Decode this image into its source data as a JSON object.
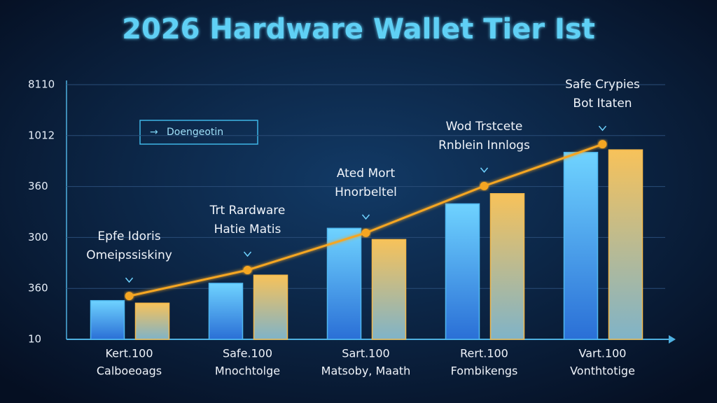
{
  "chart_data": {
    "type": "bar_line",
    "title": "2026 Hardware Wallet Tier Ist",
    "callout": "Doengeotin",
    "categories": [
      "Kert.100",
      "Safe.100",
      "Sart.100",
      "Rert.100",
      "Vart.100"
    ],
    "category_captions": [
      "Calboeoags",
      "Mnochtolge",
      "Matsoby, Maath",
      "Fombikengs",
      "Vonthtotige"
    ],
    "annotations": [
      [
        "Epfe Idoris",
        "Omeipssiskiny"
      ],
      [
        "Trt Rardware",
        "Hatie Matis"
      ],
      [
        "Ated Mort",
        "Hnorbeltel"
      ],
      [
        "Wod Trstcete",
        "Rnblein Innlogs"
      ],
      [
        "Safe Crypies",
        "Bot Itaten"
      ]
    ],
    "series": [
      {
        "color": "#4fb8f0",
        "values": [
          0.76,
          1.1,
          2.18,
          2.66,
          3.67
        ]
      },
      {
        "color": "#f2b84b",
        "values": [
          0.71,
          1.26,
          1.96,
          2.86,
          3.72
        ]
      },
      {
        "color": "#f5a623",
        "values": [
          0.85,
          1.36,
          2.09,
          3.01,
          3.83
        ]
      }
    ],
    "ylim": [
      0,
      5
    ],
    "yticks": [
      {
        "value": 0,
        "label": "10"
      },
      {
        "value": 1,
        "label": "360"
      },
      {
        "value": 2,
        "label": "300"
      },
      {
        "value": 3,
        "label": "360"
      },
      {
        "value": 4,
        "label": "1012"
      },
      {
        "value": 5,
        "label": "8110"
      }
    ],
    "grid": true
  }
}
